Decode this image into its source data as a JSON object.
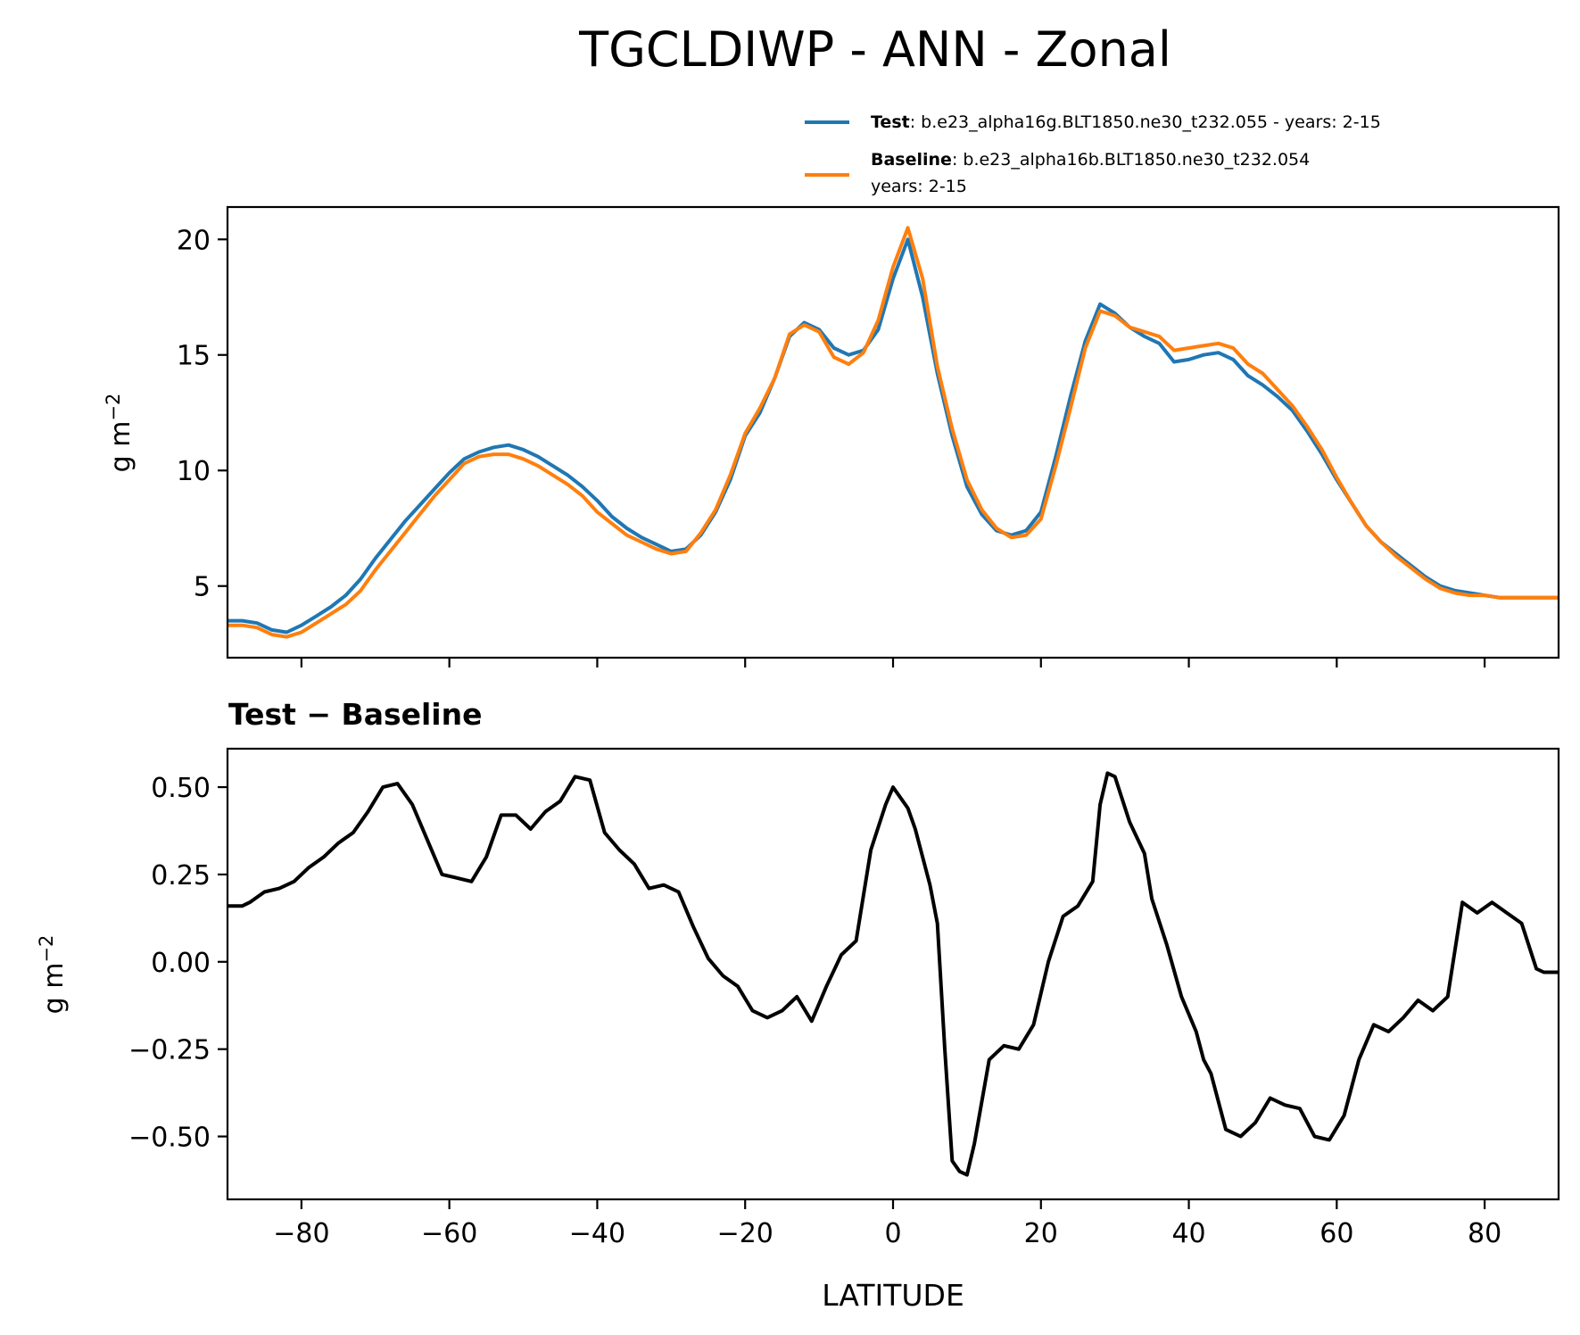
{
  "figure": {
    "title": "TGCLDIWP - ANN - Zonal"
  },
  "chart_data": [
    {
      "type": "line",
      "panel": "top",
      "title": "",
      "xlabel": "",
      "ylabel": "g m",
      "ylabel_exponent": "−2",
      "xlim": [
        -90,
        90
      ],
      "ylim": [
        1.9,
        21.4
      ],
      "yticks": [
        5,
        10,
        15,
        20
      ],
      "ytick_labels": [
        "5",
        "10",
        "15",
        "20"
      ],
      "xticks": [
        -80,
        -60,
        -40,
        -20,
        0,
        20,
        40,
        60,
        80
      ],
      "grid": false,
      "legend_position": "above-right",
      "x": [
        -90,
        -88,
        -86,
        -84,
        -82,
        -80,
        -78,
        -76,
        -74,
        -72,
        -70,
        -68,
        -66,
        -64,
        -62,
        -60,
        -58,
        -56,
        -54,
        -52,
        -50,
        -48,
        -46,
        -44,
        -42,
        -40,
        -38,
        -36,
        -34,
        -32,
        -30,
        -28,
        -26,
        -24,
        -22,
        -20,
        -18,
        -16,
        -14,
        -12,
        -10,
        -8,
        -6,
        -4,
        -2,
        0,
        2,
        4,
        6,
        8,
        10,
        12,
        14,
        16,
        18,
        20,
        22,
        24,
        26,
        28,
        30,
        32,
        34,
        36,
        38,
        40,
        42,
        44,
        46,
        48,
        50,
        52,
        54,
        56,
        58,
        60,
        62,
        64,
        66,
        68,
        70,
        72,
        74,
        76,
        78,
        80,
        82,
        84,
        86,
        88,
        90
      ],
      "series": [
        {
          "name": "Test",
          "legend_bold": "Test",
          "legend_text": ": b.e23_alpha16g.BLT1850.ne30_t232.055 - years: 2-15",
          "color": "#1f77b4",
          "values": [
            3.5,
            3.5,
            3.4,
            3.1,
            3.0,
            3.3,
            3.7,
            4.1,
            4.6,
            5.3,
            6.2,
            7.0,
            7.8,
            8.5,
            9.2,
            9.9,
            10.5,
            10.8,
            11.0,
            11.1,
            10.9,
            10.6,
            10.2,
            9.8,
            9.3,
            8.7,
            8.0,
            7.5,
            7.1,
            6.8,
            6.5,
            6.6,
            7.2,
            8.2,
            9.6,
            11.5,
            12.5,
            14.0,
            15.8,
            16.4,
            16.1,
            15.3,
            15.0,
            15.2,
            16.1,
            18.3,
            20.0,
            17.5,
            14.2,
            11.5,
            9.3,
            8.1,
            7.4,
            7.2,
            7.4,
            8.2,
            10.6,
            13.2,
            15.6,
            17.2,
            16.8,
            16.2,
            15.8,
            15.5,
            14.7,
            14.8,
            15.0,
            15.1,
            14.8,
            14.1,
            13.7,
            13.2,
            12.6,
            11.7,
            10.7,
            9.6,
            8.6,
            7.6,
            6.9,
            6.4,
            5.9,
            5.4,
            5.0,
            4.8,
            4.7,
            4.6,
            4.5,
            4.5,
            4.5,
            4.5,
            4.5
          ]
        },
        {
          "name": "Baseline",
          "legend_bold": "Baseline",
          "legend_text": ": b.e23_alpha16b.BLT1850.ne30_t232.054",
          "legend_text2": "years: 2-15",
          "color": "#ff7f0e",
          "values": [
            3.3,
            3.3,
            3.2,
            2.9,
            2.8,
            3.0,
            3.4,
            3.8,
            4.2,
            4.8,
            5.7,
            6.5,
            7.3,
            8.1,
            8.9,
            9.6,
            10.3,
            10.6,
            10.7,
            10.7,
            10.5,
            10.2,
            9.8,
            9.4,
            8.9,
            8.2,
            7.7,
            7.2,
            6.9,
            6.6,
            6.4,
            6.5,
            7.3,
            8.3,
            9.8,
            11.6,
            12.7,
            14.0,
            15.9,
            16.3,
            16.0,
            14.9,
            14.6,
            15.1,
            16.5,
            18.8,
            20.5,
            18.3,
            14.5,
            11.8,
            9.6,
            8.3,
            7.5,
            7.1,
            7.2,
            7.9,
            10.2,
            12.7,
            15.3,
            16.9,
            16.7,
            16.2,
            16.0,
            15.8,
            15.2,
            15.3,
            15.4,
            15.5,
            15.3,
            14.6,
            14.2,
            13.5,
            12.8,
            11.9,
            10.9,
            9.7,
            8.6,
            7.6,
            6.9,
            6.3,
            5.8,
            5.3,
            4.9,
            4.7,
            4.6,
            4.6,
            4.5,
            4.5,
            4.5,
            4.5,
            4.5
          ]
        }
      ]
    },
    {
      "type": "line",
      "panel": "bottom",
      "title": "Test − Baseline",
      "xlabel": "LATITUDE",
      "ylabel": "g m",
      "ylabel_exponent": "−2",
      "xlim": [
        -90,
        90
      ],
      "ylim": [
        -0.68,
        0.61
      ],
      "yticks": [
        -0.5,
        -0.25,
        0.0,
        0.25,
        0.5
      ],
      "ytick_labels": [
        "−0.50",
        "−0.25",
        "0.00",
        "0.25",
        "0.50"
      ],
      "xticks": [
        -80,
        -60,
        -40,
        -20,
        0,
        20,
        40,
        60,
        80
      ],
      "xtick_labels": [
        "−80",
        "−60",
        "−40",
        "−20",
        "0",
        "20",
        "40",
        "60",
        "80"
      ],
      "grid": false,
      "series": [
        {
          "name": "Test − Baseline",
          "color": "#000000",
          "x": [
            -90,
            -88,
            -87,
            -85,
            -83,
            -81,
            -79,
            -77,
            -75,
            -73,
            -71,
            -69,
            -67,
            -65,
            -63,
            -61,
            -59,
            -57,
            -55,
            -53,
            -51,
            -49,
            -47,
            -45,
            -43,
            -41,
            -39,
            -37,
            -35,
            -33,
            -31,
            -29,
            -27,
            -25,
            -23,
            -21,
            -19,
            -17,
            -15,
            -13,
            -11,
            -9,
            -7,
            -5,
            -3,
            -1,
            0,
            2,
            3,
            5,
            6,
            7,
            8,
            9,
            10,
            11,
            13,
            15,
            17,
            19,
            21,
            23,
            25,
            27,
            28,
            29,
            30,
            32,
            34,
            35,
            37,
            39,
            41,
            42,
            43,
            45,
            47,
            49,
            51,
            53,
            55,
            57,
            59,
            61,
            63,
            65,
            67,
            69,
            71,
            73,
            75,
            77,
            79,
            81,
            83,
            85,
            87,
            88,
            90
          ],
          "values": [
            0.16,
            0.16,
            0.17,
            0.2,
            0.21,
            0.23,
            0.27,
            0.3,
            0.34,
            0.37,
            0.43,
            0.5,
            0.51,
            0.45,
            0.35,
            0.25,
            0.24,
            0.23,
            0.3,
            0.42,
            0.42,
            0.38,
            0.43,
            0.46,
            0.53,
            0.52,
            0.37,
            0.32,
            0.28,
            0.21,
            0.22,
            0.2,
            0.1,
            0.01,
            -0.04,
            -0.07,
            -0.14,
            -0.16,
            -0.14,
            -0.1,
            -0.17,
            -0.07,
            0.02,
            0.06,
            0.32,
            0.45,
            0.5,
            0.44,
            0.38,
            0.22,
            0.11,
            -0.25,
            -0.57,
            -0.6,
            -0.61,
            -0.52,
            -0.28,
            -0.24,
            -0.25,
            -0.18,
            0.0,
            0.13,
            0.16,
            0.23,
            0.45,
            0.54,
            0.53,
            0.4,
            0.31,
            0.18,
            0.05,
            -0.1,
            -0.2,
            -0.28,
            -0.32,
            -0.48,
            -0.5,
            -0.46,
            -0.39,
            -0.41,
            -0.42,
            -0.5,
            -0.51,
            -0.44,
            -0.28,
            -0.18,
            -0.2,
            -0.16,
            -0.11,
            -0.14,
            -0.1,
            0.17,
            0.14,
            0.17,
            0.14,
            0.11,
            -0.02,
            -0.03,
            -0.03
          ]
        }
      ]
    }
  ]
}
